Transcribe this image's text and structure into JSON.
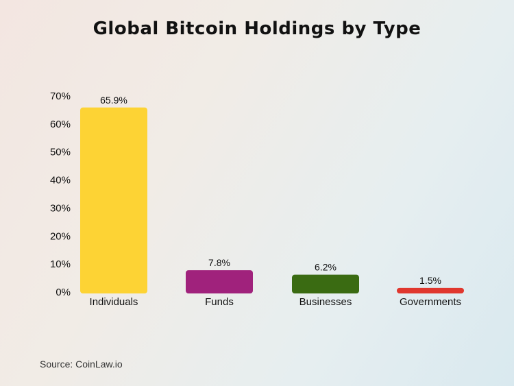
{
  "chart_data": {
    "type": "bar",
    "title": "Global Bitcoin Holdings by Type",
    "categories": [
      "Individuals",
      "Funds",
      "Businesses",
      "Governments"
    ],
    "values": [
      65.9,
      7.8,
      6.2,
      1.5
    ],
    "value_labels": [
      "65.9%",
      "7.8%",
      "6.2%",
      "1.5%"
    ],
    "bar_colors": [
      "#fdd334",
      "#a0227c",
      "#3a6b12",
      "#e0372e"
    ],
    "ylim": [
      0,
      70
    ],
    "yticks": [
      0,
      10,
      20,
      30,
      40,
      50,
      60,
      70
    ],
    "ytick_labels": [
      "0%",
      "10%",
      "20%",
      "30%",
      "40%",
      "50%",
      "60%",
      "70%"
    ],
    "xlabel": "",
    "ylabel": "",
    "grid": false,
    "legend": "none"
  },
  "footer": {
    "source": "Source: CoinLaw.io"
  }
}
